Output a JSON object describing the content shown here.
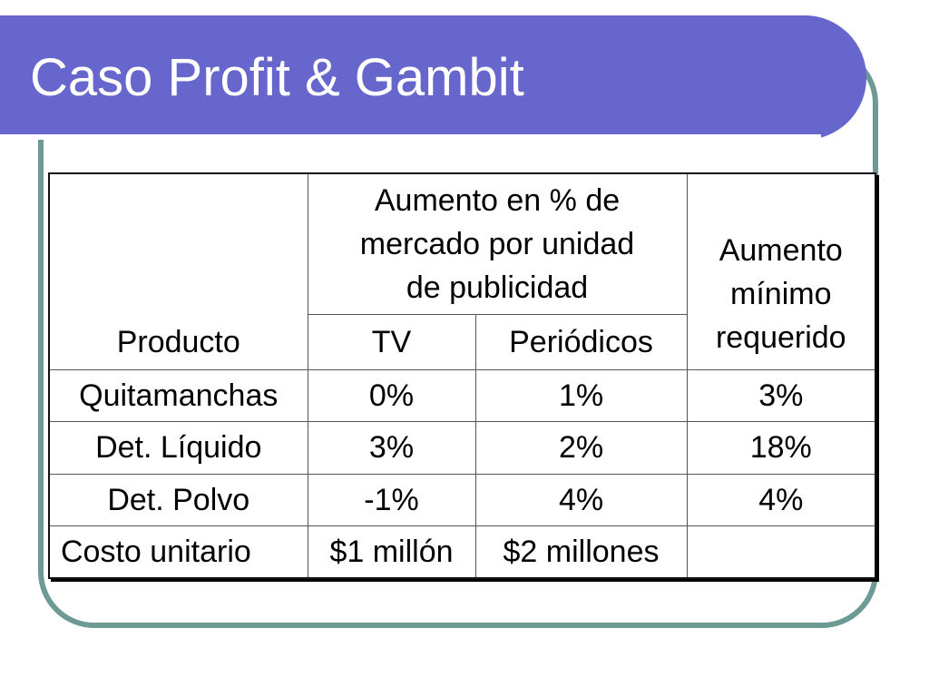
{
  "slide": {
    "title": "Caso Profit & Gambit",
    "colors": {
      "title_band": "#6666cc",
      "frame": "#6d9a94",
      "title_text": "#ffffff"
    }
  },
  "table": {
    "header": {
      "product": "Producto",
      "group_line1": "Aumento en % de",
      "group_line2": "mercado por unidad",
      "group_line3": "de publicidad",
      "tv": "TV",
      "periodicos": "Periódicos",
      "min_line1": "Aumento",
      "min_line2": "mínimo",
      "min_line3": "requerido"
    },
    "rows": [
      {
        "product": "Quitamanchas",
        "tv": "0%",
        "periodicos": "1%",
        "minimo": "3%"
      },
      {
        "product": "Det. Líquido",
        "tv": "3%",
        "periodicos": "2%",
        "minimo": "18%"
      },
      {
        "product": "Det. Polvo",
        "tv": "-1%",
        "periodicos": "4%",
        "minimo": "4%"
      },
      {
        "product": "Costo unitario",
        "tv": "$1 millón",
        "periodicos": "$2 millones",
        "minimo": ""
      }
    ]
  }
}
